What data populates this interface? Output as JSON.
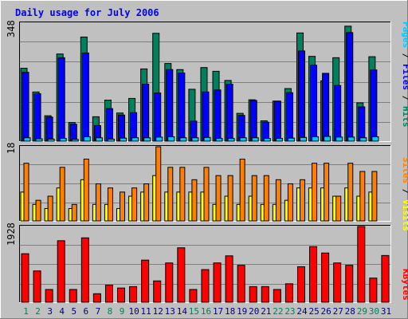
{
  "chart_data": [
    {
      "type": "bar",
      "title": "Daily usage for July 2006",
      "ylabel_max": "348",
      "ylim": [
        0,
        348
      ],
      "grid": true,
      "legend": [
        {
          "label": "Hits",
          "color": "#00805c"
        },
        {
          "label": "Files",
          "color": "#0000ff"
        },
        {
          "label": "Pages",
          "color": "#00c8ff"
        }
      ],
      "categories": [
        "1",
        "2",
        "3",
        "4",
        "5",
        "6",
        "7",
        "8",
        "9",
        "10",
        "11",
        "12",
        "13",
        "14",
        "15",
        "16",
        "17",
        "18",
        "19",
        "20",
        "21",
        "22",
        "23",
        "24",
        "25",
        "26",
        "27",
        "28",
        "29",
        "30",
        "31"
      ],
      "series": [
        {
          "name": "Hits",
          "values": [
            215,
            145,
            75,
            257,
            55,
            307,
            72,
            121,
            83,
            126,
            213,
            318,
            229,
            211,
            153,
            217,
            206,
            179,
            82,
            122,
            60,
            118,
            155,
            319,
            250,
            178,
            246,
            339,
            113,
            249,
            0
          ]
        },
        {
          "name": "Files",
          "values": [
            203,
            140,
            71,
            246,
            50,
            260,
            46,
            96,
            77,
            84,
            168,
            142,
            211,
            201,
            59,
            145,
            151,
            168,
            76,
            120,
            56,
            118,
            143,
            266,
            224,
            200,
            164,
            320,
            101,
            210,
            0
          ]
        },
        {
          "name": "Pages",
          "values": [
            10,
            7,
            6,
            8,
            5,
            13,
            10,
            6,
            9,
            10,
            10,
            12,
            13,
            10,
            10,
            11,
            8,
            8,
            10,
            10,
            8,
            8,
            9,
            11,
            13,
            14,
            12,
            12,
            10,
            13,
            0
          ]
        }
      ]
    },
    {
      "type": "bar",
      "ylabel_max": "18",
      "ylim": [
        0,
        18
      ],
      "grid": true,
      "legend": [
        {
          "label": "Visits",
          "color": "#ffff00"
        },
        {
          "label": "Sites",
          "color": "#ff8000"
        }
      ],
      "categories": [
        "1",
        "2",
        "3",
        "4",
        "5",
        "6",
        "7",
        "8",
        "9",
        "10",
        "11",
        "12",
        "13",
        "14",
        "15",
        "16",
        "17",
        "18",
        "19",
        "20",
        "21",
        "22",
        "23",
        "24",
        "25",
        "26",
        "27",
        "28",
        "29",
        "30",
        "31"
      ],
      "series": [
        {
          "name": "Visits",
          "values": [
            7,
            4,
            3,
            8,
            3,
            10,
            4,
            4,
            3,
            6,
            7,
            11,
            7,
            7,
            7,
            7,
            4,
            6,
            4,
            6,
            4,
            4,
            5,
            8,
            8,
            8,
            6,
            8,
            6,
            7,
            0
          ]
        },
        {
          "name": "Sites",
          "values": [
            14,
            5,
            6,
            13,
            4,
            15,
            9,
            8,
            7,
            8,
            9,
            18,
            13,
            13,
            10,
            13,
            11,
            11,
            15,
            11,
            11,
            10,
            9,
            10,
            14,
            14,
            6,
            14,
            12,
            12,
            0
          ]
        }
      ]
    },
    {
      "type": "bar",
      "ylabel_max": "1928",
      "ylim": [
        0,
        1928
      ],
      "grid": true,
      "legend": [
        {
          "label": "KBytes",
          "color": "#ff0000"
        }
      ],
      "categories": [
        "1",
        "2",
        "3",
        "4",
        "5",
        "6",
        "7",
        "8",
        "9",
        "10",
        "11",
        "12",
        "13",
        "14",
        "15",
        "16",
        "17",
        "18",
        "19",
        "20",
        "21",
        "22",
        "23",
        "24",
        "25",
        "26",
        "27",
        "28",
        "29",
        "30",
        "31"
      ],
      "series": [
        {
          "name": "KBytes",
          "values": [
            1235,
            797,
            325,
            1566,
            325,
            1639,
            217,
            434,
            362,
            398,
            1072,
            543,
            1000,
            1386,
            325,
            831,
            1000,
            1181,
            941,
            398,
            398,
            325,
            470,
            904,
            1416,
            1253,
            1000,
            941,
            1928,
            615,
            1190
          ]
        }
      ]
    }
  ],
  "legend_text": {
    "hits": "Hits",
    "files": "Files",
    "pages": "Pages",
    "visits": "Visits",
    "sites": "Sites",
    "kbytes": "KBytes",
    "sep": " / "
  },
  "colors": {
    "background": "#c0c0c0",
    "title": "#0000ff",
    "hits": "#00805c",
    "files": "#0000ff",
    "pages": "#00c8ff",
    "visits": "#ffff00",
    "sites": "#ff8000",
    "kbytes": "#ff0000",
    "weekend_label": "#00805c",
    "weekday_label": "#000080"
  },
  "weekend_days": [
    1,
    2,
    8,
    9,
    15,
    16,
    22,
    23,
    29,
    30
  ]
}
